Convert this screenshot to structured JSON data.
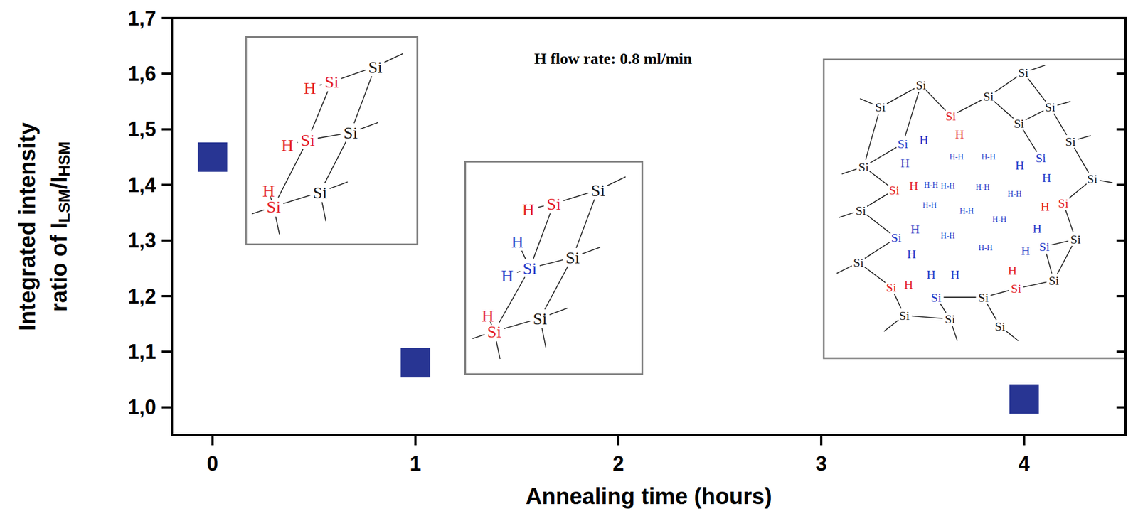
{
  "chart_data": {
    "type": "scatter",
    "title": "H flow rate: 0.8 ml/min",
    "xlabel": "Annealing time (hours)",
    "ylabel": [
      "Integrated intensity",
      [
        "ratio of I",
        "LSM",
        "/I",
        "HSM"
      ]
    ],
    "x": [
      0,
      1,
      4
    ],
    "values": [
      1.45,
      1.08,
      1.015
    ],
    "color": "#283593",
    "marker": "square",
    "xlim": [
      -0.2,
      4.5
    ],
    "xticks": [
      0,
      1,
      2,
      3,
      4
    ],
    "ylim": [
      0.95,
      1.7
    ],
    "yticks": [
      {
        "value": 1.0,
        "label": "1,0"
      },
      {
        "value": 1.1,
        "label": "1,1"
      },
      {
        "value": 1.2,
        "label": "1,2"
      },
      {
        "value": 1.3,
        "label": "1,3"
      },
      {
        "value": 1.4,
        "label": "1,4"
      },
      {
        "value": 1.5,
        "label": "1,5"
      },
      {
        "value": 1.6,
        "label": "1,6"
      },
      {
        "value": 1.7,
        "label": "1,7"
      }
    ],
    "grid": false,
    "annotations": [
      {
        "labels": [
          {
            "text": "Si",
            "color": "#1a1a1a"
          },
          {
            "text": "Si",
            "color": "#e41e26"
          },
          {
            "text": "H",
            "color": "#e41e26"
          },
          {
            "text": "Si",
            "color": "#1a1a1a"
          },
          {
            "text": "Si",
            "color": "#e41e26"
          },
          {
            "text": "H",
            "color": "#e41e26"
          },
          {
            "text": "Si",
            "color": "#1a1a1a"
          },
          {
            "text": "Si",
            "color": "#e41e26"
          },
          {
            "text": "H",
            "color": "#e41e26"
          }
        ]
      },
      {
        "labels": [
          {
            "text": "Si",
            "color": "#1a1a1a"
          },
          {
            "text": "Si",
            "color": "#e41e26"
          },
          {
            "text": "H",
            "color": "#e41e26"
          },
          {
            "text": "Si",
            "color": "#1a1a1a"
          },
          {
            "text": "Si",
            "color": "#1f3bc9"
          },
          {
            "text": "H",
            "color": "#1f3bc9"
          },
          {
            "text": "H",
            "color": "#1f3bc9"
          },
          {
            "text": "Si",
            "color": "#1a1a1a"
          },
          {
            "text": "Si",
            "color": "#e41e26"
          },
          {
            "text": "H",
            "color": "#e41e26"
          }
        ]
      },
      {
        "labels": [
          {
            "text": "Si",
            "color": "#1a1a1a"
          },
          {
            "text": "Si",
            "color": "#1a1a1a"
          },
          {
            "text": "Si",
            "color": "#1a1a1a"
          },
          {
            "text": "Si",
            "color": "#1a1a1a"
          },
          {
            "text": "Si",
            "color": "#1a1a1a"
          },
          {
            "text": "Si",
            "color": "#e41e26"
          },
          {
            "text": "Si",
            "color": "#1a1a1a"
          },
          {
            "text": "Si",
            "color": "#1f3bc9"
          },
          {
            "text": "Si",
            "color": "#1a1a1a"
          },
          {
            "text": "Si",
            "color": "#1f3bc9"
          },
          {
            "text": "Si",
            "color": "#1a1a1a"
          },
          {
            "text": "Si",
            "color": "#1a1a1a"
          },
          {
            "text": "Si",
            "color": "#e41e26"
          },
          {
            "text": "Si",
            "color": "#1a1a1a"
          },
          {
            "text": "Si",
            "color": "#e41e26"
          },
          {
            "text": "Si",
            "color": "#1f3bc9"
          },
          {
            "text": "Si",
            "color": "#1f3bc9"
          },
          {
            "text": "Si",
            "color": "#1a1a1a"
          },
          {
            "text": "Si",
            "color": "#1a1a1a"
          },
          {
            "text": "Si",
            "color": "#e41e26"
          },
          {
            "text": "Si",
            "color": "#1f3bc9"
          },
          {
            "text": "Si",
            "color": "#1a1a1a"
          },
          {
            "text": "Si",
            "color": "#e41e26"
          },
          {
            "text": "Si",
            "color": "#1a1a1a"
          },
          {
            "text": "Si",
            "color": "#1a1a1a"
          },
          {
            "text": "Si",
            "color": "#1a1a1a"
          },
          {
            "text": "Si",
            "color": "#1a1a1a"
          },
          {
            "text": "H",
            "color": "#e41e26"
          },
          {
            "text": "H",
            "color": "#1f3bc9"
          },
          {
            "text": "H",
            "color": "#1f3bc9"
          },
          {
            "text": "H",
            "color": "#1f3bc9"
          },
          {
            "text": "H",
            "color": "#1f3bc9"
          },
          {
            "text": "H",
            "color": "#e41e26"
          },
          {
            "text": "H",
            "color": "#e41e26"
          },
          {
            "text": "H",
            "color": "#1f3bc9"
          },
          {
            "text": "H",
            "color": "#1f3bc9"
          },
          {
            "text": "H",
            "color": "#1f3bc9"
          },
          {
            "text": "H",
            "color": "#1f3bc9"
          },
          {
            "text": "H",
            "color": "#e41e26"
          },
          {
            "text": "H",
            "color": "#1f3bc9"
          },
          {
            "text": "H",
            "color": "#1f3bc9"
          },
          {
            "text": "H",
            "color": "#e41e26"
          },
          {
            "text": "H-H",
            "color": "#1f3bc9"
          },
          {
            "text": "H-H",
            "color": "#1f3bc9"
          },
          {
            "text": "H-H",
            "color": "#1f3bc9"
          },
          {
            "text": "H-H",
            "color": "#1f3bc9"
          },
          {
            "text": "H-H",
            "color": "#1f3bc9"
          },
          {
            "text": "H-H",
            "color": "#1f3bc9"
          },
          {
            "text": "H-H",
            "color": "#1f3bc9"
          },
          {
            "text": "H-H",
            "color": "#1f3bc9"
          },
          {
            "text": "H-H",
            "color": "#1f3bc9"
          },
          {
            "text": "H-H",
            "color": "#1f3bc9"
          },
          {
            "text": "H-H",
            "color": "#1f3bc9"
          }
        ]
      }
    ]
  }
}
